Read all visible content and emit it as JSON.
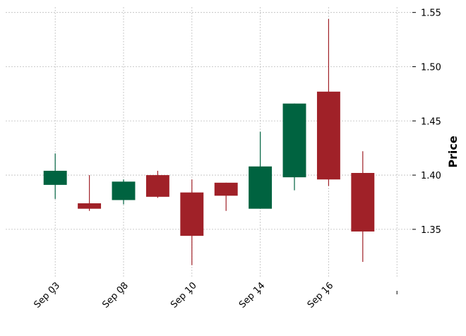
{
  "chart_data": {
    "type": "candlestick",
    "title": "",
    "xlabel": "",
    "ylabel": "Price",
    "ylim": [
      1.305,
      1.555
    ],
    "y_ticks": [
      1.35,
      1.4,
      1.45,
      1.5,
      1.55
    ],
    "y_tick_labels": [
      "1.35",
      "1.40",
      "1.45",
      "1.50",
      "1.55"
    ],
    "x_ticks": [
      {
        "index": 0,
        "label": "Sep 03"
      },
      {
        "index": 2,
        "label": "Sep 08"
      },
      {
        "index": 4,
        "label": "Sep 10"
      },
      {
        "index": 6,
        "label": "Sep 14"
      },
      {
        "index": 8,
        "label": "Sep 16"
      },
      {
        "index": 10,
        "label": ""
      }
    ],
    "xlim": [
      -1.45,
      10.45
    ],
    "grid": true,
    "y_axis_side": "right",
    "colors": {
      "up": "#006340",
      "down": "#a02128",
      "grid": "#bdbdbd"
    },
    "candles": [
      {
        "open": 1.391,
        "high": 1.42,
        "low": 1.378,
        "close": 1.404
      },
      {
        "open": 1.374,
        "high": 1.4,
        "low": 1.367,
        "close": 1.369
      },
      {
        "open": 1.377,
        "high": 1.396,
        "low": 1.373,
        "close": 1.394
      },
      {
        "open": 1.4,
        "high": 1.404,
        "low": 1.379,
        "close": 1.38
      },
      {
        "open": 1.384,
        "high": 1.396,
        "low": 1.317,
        "close": 1.344
      },
      {
        "open": 1.393,
        "high": 1.393,
        "low": 1.367,
        "close": 1.381
      },
      {
        "open": 1.369,
        "high": 1.44,
        "low": 1.369,
        "close": 1.408
      },
      {
        "open": 1.398,
        "high": 1.466,
        "low": 1.386,
        "close": 1.466
      },
      {
        "open": 1.477,
        "high": 1.544,
        "low": 1.39,
        "close": 1.396
      },
      {
        "open": 1.402,
        "high": 1.422,
        "low": 1.32,
        "close": 1.348
      }
    ]
  }
}
